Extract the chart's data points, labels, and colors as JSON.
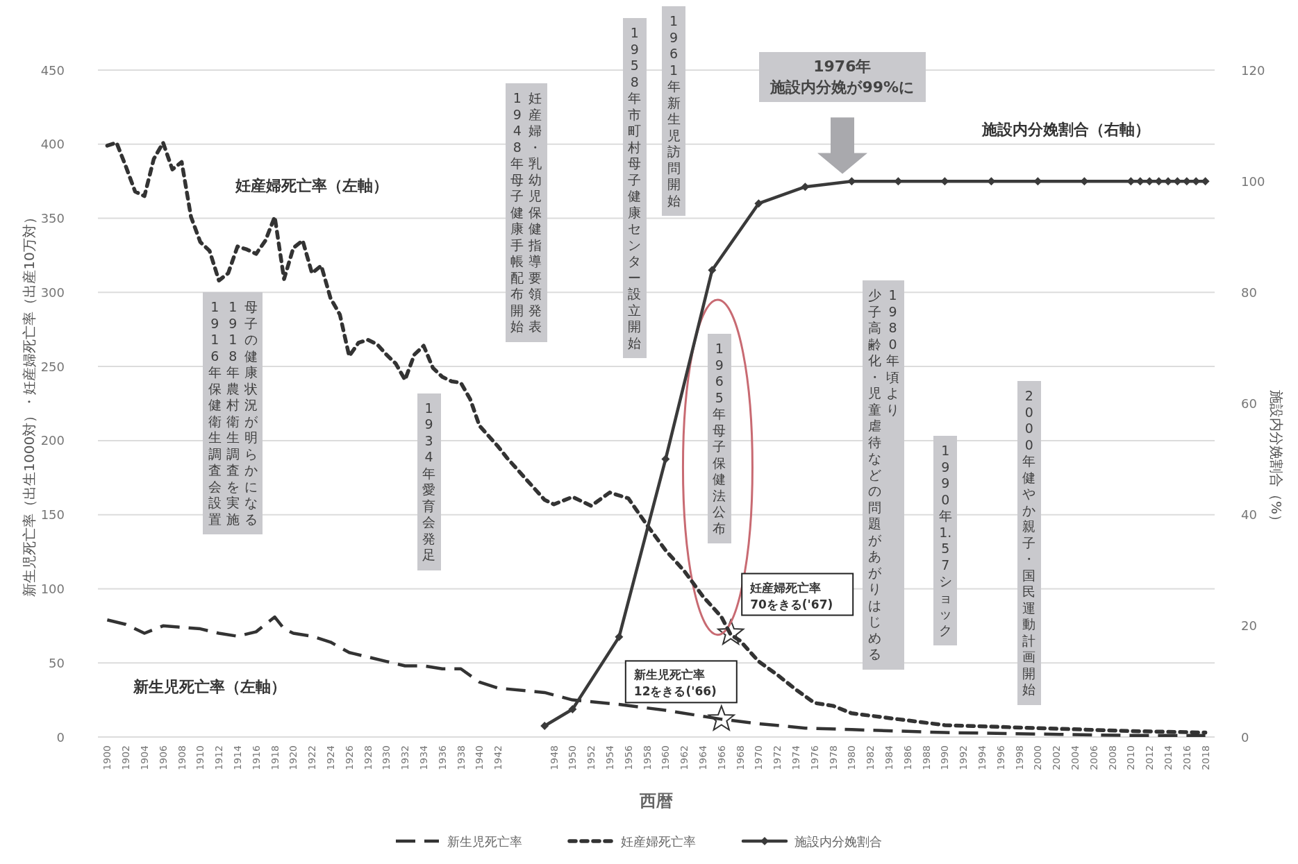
{
  "chart_data": {
    "type": "line",
    "xlabel": "西暦",
    "ylabel": "新生児死亡率（出生1000対）・妊産婦死亡率（出産10万対）",
    "y2label": "施設内分娩割合（%）",
    "xlim": [
      1899,
      2019
    ],
    "xticks": [
      1900,
      1902,
      1904,
      1906,
      1908,
      1910,
      1912,
      1914,
      1916,
      1918,
      1920,
      1922,
      1924,
      1926,
      1928,
      1930,
      1932,
      1934,
      1936,
      1938,
      1940,
      1942,
      1948,
      1950,
      1952,
      1954,
      1956,
      1958,
      1960,
      1962,
      1964,
      1966,
      1968,
      1970,
      1972,
      1974,
      1976,
      1978,
      1980,
      1982,
      1984,
      1986,
      1988,
      1990,
      1992,
      1994,
      1996,
      1998,
      2000,
      2002,
      2004,
      2006,
      2008,
      2010,
      2012,
      2014,
      2016,
      2018
    ],
    "ylim": [
      0,
      450
    ],
    "yticks": [
      0,
      50,
      100,
      150,
      200,
      250,
      300,
      350,
      400,
      450
    ],
    "y2lim": [
      0,
      120
    ],
    "y2ticks": [
      0,
      20,
      40,
      60,
      80,
      100,
      120
    ],
    "grid": "y",
    "legend": "bottom",
    "series": [
      {
        "name": "新生児死亡率",
        "color": "#333333",
        "line_style": "dashed",
        "x": [
          1900,
          1902,
          1904,
          1906,
          1908,
          1910,
          1912,
          1914,
          1916,
          1918,
          1919,
          1920,
          1922,
          1924,
          1926,
          1928,
          1930,
          1932,
          1934,
          1936,
          1938,
          1940,
          1942,
          1947,
          1950,
          1955,
          1960,
          1966,
          1970,
          1975,
          1980,
          1990,
          2000,
          2010,
          2018
        ],
        "values": [
          79,
          76,
          70,
          75,
          74,
          73,
          70,
          68,
          71,
          81,
          73,
          70,
          68,
          64,
          57,
          54,
          51,
          48,
          48,
          46,
          46,
          37,
          33,
          30,
          25,
          22,
          18,
          12,
          9,
          6,
          5,
          3,
          2,
          1,
          1
        ]
      },
      {
        "name": "妊産婦死亡率",
        "color": "#333333",
        "line_style": "dotted",
        "x": [
          1900,
          1901,
          1902,
          1903,
          1904,
          1905,
          1906,
          1907,
          1908,
          1909,
          1910,
          1911,
          1912,
          1913,
          1914,
          1915,
          1916,
          1917,
          1918,
          1919,
          1920,
          1921,
          1922,
          1923,
          1924,
          1925,
          1926,
          1927,
          1928,
          1929,
          1930,
          1931,
          1932,
          1933,
          1934,
          1935,
          1936,
          1937,
          1938,
          1939,
          1940,
          1941,
          1942,
          1943,
          1947,
          1948,
          1950,
          1952,
          1954,
          1956,
          1958,
          1960,
          1962,
          1964,
          1966,
          1967,
          1968,
          1970,
          1972,
          1974,
          1976,
          1978,
          1980,
          1985,
          1990,
          1995,
          2000,
          2005,
          2010,
          2018
        ],
        "values": [
          399,
          401,
          385,
          368,
          365,
          390,
          401,
          383,
          388,
          351,
          334,
          328,
          308,
          313,
          331,
          329,
          326,
          335,
          351,
          309,
          330,
          335,
          313,
          318,
          296,
          285,
          257,
          266,
          268,
          265,
          258,
          252,
          241,
          258,
          264,
          249,
          243,
          240,
          239,
          228,
          210,
          203,
          196,
          188,
          160,
          157,
          162,
          156,
          165,
          161,
          143,
          126,
          112,
          95,
          81,
          69,
          65,
          51,
          42,
          32,
          23,
          21,
          16,
          12,
          8,
          7,
          6,
          5,
          4,
          3
        ]
      },
      {
        "name": "施設内分娩割合",
        "color": "#3a3a3a",
        "line_style": "solid",
        "marker": "diamond",
        "axis": "y2",
        "x": [
          1947,
          1950,
          1955,
          1960,
          1965,
          1970,
          1975,
          1980,
          1985,
          1990,
          1995,
          2000,
          2005,
          2010,
          2011,
          2012,
          2013,
          2014,
          2015,
          2016,
          2017,
          2018
        ],
        "values": [
          2,
          5,
          18,
          50,
          84,
          96,
          99,
          100,
          100,
          100,
          100,
          100,
          100,
          100,
          100,
          100,
          100,
          100,
          100,
          100,
          100,
          100
        ]
      }
    ],
    "annotations": [
      "妊産婦死亡率（左軸）",
      "新生児死亡率（左軸）",
      "施設内分娩割合（右軸）",
      "母子の健康状況が明らかになる",
      "1918年農村衛生調査を実施",
      "1916年保健衛生調査会設置",
      "1934年愛育会発足",
      "妊産婦・乳幼児保健指導要領発表",
      "1948年母子健康手帳配布開始",
      "1958年市町村母子健康センター設立開始",
      "1961年新生児訪問開始",
      "1965年母子保健法公布",
      "1976年",
      "施設内分娩が99%に",
      "1980年頃より",
      "少子高齢化・児童虐待などの問題があがりはじめる",
      "1990年1.57ショック",
      "2000年健やか親子・国民運動計画開始",
      {
        "text": "妊産婦死亡率\n70をきる('67)",
        "x": 1967,
        "y": 70
      },
      {
        "text": "新生児死亡率\n12をきる('66)",
        "x": 1966,
        "y": 12
      }
    ]
  }
}
